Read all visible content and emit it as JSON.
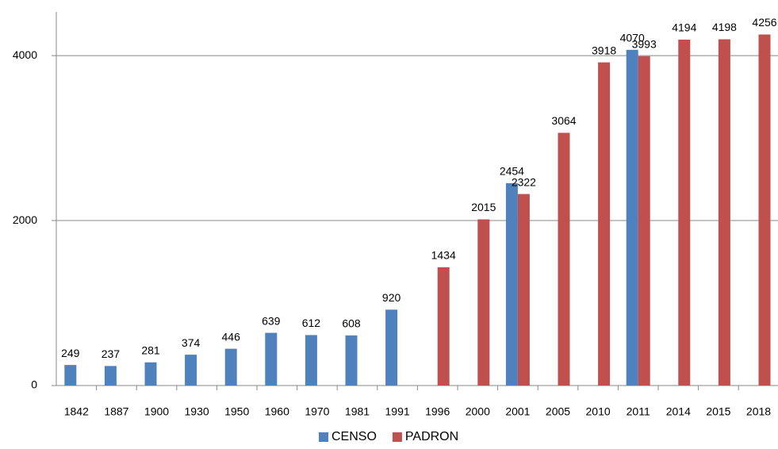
{
  "chart_data": {
    "type": "bar",
    "categories": [
      "1842",
      "1887",
      "1900",
      "1930",
      "1950",
      "1960",
      "1970",
      "1981",
      "1991",
      "1996",
      "2000",
      "2001",
      "2005",
      "2010",
      "2011",
      "2014",
      "2015",
      "2018"
    ],
    "series": [
      {
        "name": "CENSO",
        "color": "#4f81bd",
        "values": [
          249,
          237,
          281,
          374,
          446,
          639,
          612,
          608,
          920,
          null,
          null,
          2454,
          null,
          null,
          4070,
          null,
          null,
          null
        ]
      },
      {
        "name": "PADRON",
        "color": "#c0504d",
        "values": [
          null,
          null,
          null,
          null,
          null,
          null,
          null,
          null,
          null,
          1434,
          2015,
          2322,
          3064,
          3918,
          3993,
          4194,
          4198,
          4256
        ]
      }
    ],
    "ylim": [
      0,
      4530
    ],
    "yticks": [
      0,
      2000,
      4000
    ],
    "grid": true,
    "legend": "bottom"
  }
}
